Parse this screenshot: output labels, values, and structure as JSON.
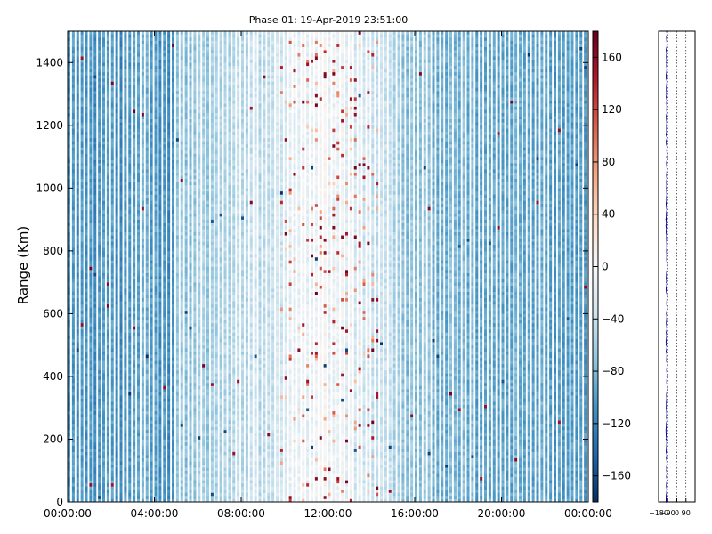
{
  "chart_data": [
    {
      "type": "heatmap",
      "title": "Phase 01: 19-Apr-2019 23:51:00",
      "xlabel": "",
      "ylabel": "Range (Km)",
      "xlim": [
        "00:00:00",
        "24:00:00"
      ],
      "ylim": [
        0,
        1500
      ],
      "x_ticks": [
        "00:00:00",
        "04:00:00",
        "08:00:00",
        "12:00:00",
        "16:00:00",
        "20:00:00",
        "00:00:00"
      ],
      "y_ticks": [
        0,
        200,
        400,
        600,
        800,
        1000,
        1200,
        1400
      ],
      "grid": false,
      "colormap": "RdBu_r",
      "color_range": [
        -180,
        180
      ],
      "colorbar_ticks": [
        -160,
        -120,
        -80,
        -40,
        0,
        40,
        80,
        120,
        160
      ],
      "range_bin_km": 10,
      "time_columns": 120,
      "pattern": {
        "profile_hours": [
          0,
          2,
          3.6,
          5,
          5.1,
          8,
          10,
          12,
          14,
          16,
          20,
          24
        ],
        "profile_phase": [
          -108,
          -112,
          -95,
          -108,
          -75,
          -55,
          -25,
          -5,
          -30,
          -75,
          -95,
          -100
        ],
        "high_phase_window_hours": [
          9.8,
          14.4
        ],
        "stripe_spacing_hours": 0.2
      }
    },
    {
      "type": "line",
      "title": "",
      "xlabel": "",
      "ylabel": "",
      "xlim": [
        -180,
        180
      ],
      "ylim": [
        0,
        1500
      ],
      "x_ticks": [
        -180,
        -90,
        0,
        90
      ],
      "grid": true,
      "color": "#0000aa",
      "series": [
        {
          "y": [
            0,
            100,
            200,
            300,
            400,
            500,
            600,
            700,
            800,
            900,
            1000,
            1100,
            1200,
            1300,
            1400,
            1500
          ],
          "values": [
            -102,
            -98,
            -104,
            -100,
            -96,
            -103,
            -99,
            -101,
            -97,
            -104,
            -100,
            -98,
            -102,
            -99,
            -101,
            -100
          ]
        }
      ]
    }
  ]
}
